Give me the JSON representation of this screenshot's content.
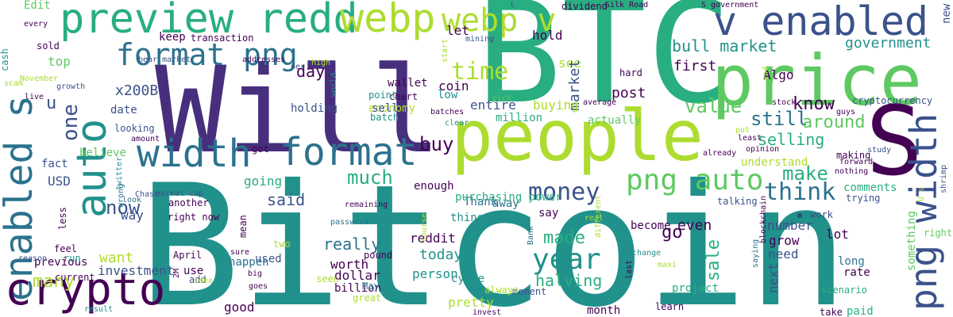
{
  "palette": {
    "dark_purple": "#440154",
    "purple": "#472f7d",
    "indigo": "#3b528b",
    "blue": "#2c728e",
    "teal": "#21918c",
    "green": "#28ae80",
    "light_green": "#5ec962",
    "lime": "#addc30",
    "yellow": "#fde725"
  },
  "words": [
    {
      "text": "Bitcoin"
    },
    {
      "text": "Will"
    },
    {
      "text": "BTC"
    },
    {
      "text": "people"
    },
    {
      "text": "price"
    },
    {
      "text": "S"
    },
    {
      "text": "preview redd"
    },
    {
      "text": "webp"
    },
    {
      "text": "webp v"
    },
    {
      "text": "v enabled"
    },
    {
      "text": "width"
    },
    {
      "text": "format"
    },
    {
      "text": "enabled s"
    },
    {
      "text": "auto"
    },
    {
      "text": "crypto"
    },
    {
      "text": "png width"
    },
    {
      "text": "format png"
    },
    {
      "text": "png auto"
    },
    {
      "text": "money"
    },
    {
      "text": "year"
    },
    {
      "text": "time"
    },
    {
      "text": "think"
    },
    {
      "text": "bull market"
    },
    {
      "text": "government"
    },
    {
      "text": "much"
    },
    {
      "text": "make"
    },
    {
      "text": "know"
    },
    {
      "text": "still"
    },
    {
      "text": "around"
    },
    {
      "text": "value"
    },
    {
      "text": "selling"
    },
    {
      "text": "buy"
    },
    {
      "text": "made"
    },
    {
      "text": "halving"
    },
    {
      "text": "sale"
    },
    {
      "text": "said"
    },
    {
      "text": "now"
    },
    {
      "text": "many"
    },
    {
      "text": "want"
    },
    {
      "text": "one"
    },
    {
      "text": "u"
    },
    {
      "text": "x200B"
    },
    {
      "text": "day"
    },
    {
      "text": "top"
    },
    {
      "text": "Edit"
    },
    {
      "text": "keep"
    },
    {
      "text": "transaction"
    },
    {
      "text": "wallet"
    },
    {
      "text": "chart"
    },
    {
      "text": "economy"
    },
    {
      "text": "point"
    },
    {
      "text": "sell"
    },
    {
      "text": "holding"
    },
    {
      "text": "batch"
    },
    {
      "text": "coin"
    },
    {
      "text": "low"
    },
    {
      "text": "hold"
    },
    {
      "text": "see"
    },
    {
      "text": "let"
    },
    {
      "text": "market"
    },
    {
      "text": "post"
    },
    {
      "text": "first"
    },
    {
      "text": "Algo"
    },
    {
      "text": "cryptocurrency"
    },
    {
      "text": "entire"
    },
    {
      "text": "buying"
    },
    {
      "text": "million"
    },
    {
      "text": "actually"
    },
    {
      "text": "going"
    },
    {
      "text": "USD"
    },
    {
      "text": "fact"
    },
    {
      "text": "believe"
    },
    {
      "text": "looking"
    },
    {
      "text": "amount"
    },
    {
      "text": "date"
    },
    {
      "text": "got"
    },
    {
      "text": "community"
    },
    {
      "text": "enough"
    },
    {
      "text": "Thank"
    },
    {
      "text": "away"
    },
    {
      "text": "thing"
    },
    {
      "text": "purchasing power"
    },
    {
      "text": "say"
    },
    {
      "text": "become"
    },
    {
      "text": "go"
    },
    {
      "text": "even"
    },
    {
      "text": "understand"
    },
    {
      "text": "comments"
    },
    {
      "text": "trying"
    },
    {
      "text": "talking"
    },
    {
      "text": "work"
    },
    {
      "text": "number"
    },
    {
      "text": "grow"
    },
    {
      "text": "need"
    },
    {
      "text": "next"
    },
    {
      "text": "lot"
    },
    {
      "text": "long"
    },
    {
      "text": "rate"
    },
    {
      "text": "something"
    },
    {
      "text": "right"
    },
    {
      "text": "paid"
    },
    {
      "text": "take"
    },
    {
      "text": "scenario"
    },
    {
      "text": "project"
    },
    {
      "text": "tweet"
    },
    {
      "text": "learn"
    },
    {
      "text": "month"
    },
    {
      "text": "good"
    },
    {
      "text": "pretty"
    },
    {
      "text": "moment"
    },
    {
      "text": "cycle"
    },
    {
      "text": "always"
    },
    {
      "text": "billion"
    },
    {
      "text": "great"
    },
    {
      "text": "person"
    },
    {
      "text": "dollar"
    },
    {
      "text": "worth"
    },
    {
      "text": "really"
    },
    {
      "text": "today"
    },
    {
      "text": "reddit"
    },
    {
      "text": "May"
    },
    {
      "text": "pound"
    },
    {
      "text": "used"
    },
    {
      "text": "use"
    },
    {
      "text": "add"
    },
    {
      "text": "April"
    },
    {
      "text": "investment"
    },
    {
      "text": "current"
    },
    {
      "text": "previous"
    },
    {
      "text": "feel"
    },
    {
      "text": "run"
    },
    {
      "text": "less"
    },
    {
      "text": "way"
    },
    {
      "text": "another"
    },
    {
      "text": "right now"
    },
    {
      "text": "mean"
    },
    {
      "text": "sure"
    },
    {
      "text": "happen"
    },
    {
      "text": "two"
    },
    {
      "text": "password"
    },
    {
      "text": "remaining"
    },
    {
      "text": "Chase"
    },
    {
      "text": "market cap"
    },
    {
      "text": "twitter"
    },
    {
      "text": "look"
    },
    {
      "text": "wrong"
    },
    {
      "text": "every"
    },
    {
      "text": "sold"
    },
    {
      "text": "cash"
    },
    {
      "text": "November"
    },
    {
      "text": "growth"
    },
    {
      "text": "live"
    },
    {
      "text": "scam"
    },
    {
      "text": "addresses"
    },
    {
      "text": "high"
    },
    {
      "text": "per"
    },
    {
      "text": "bear market"
    },
    {
      "text": "mining"
    },
    {
      "text": "dividend"
    },
    {
      "text": "t"
    },
    {
      "text": "Silk Road"
    },
    {
      "text": "S government"
    },
    {
      "text": "new"
    },
    {
      "text": "hard"
    },
    {
      "text": "end"
    },
    {
      "text": "average"
    },
    {
      "text": "stock"
    },
    {
      "text": "guys"
    },
    {
      "text": "clear"
    },
    {
      "text": "batches"
    },
    {
      "text": "pick"
    },
    {
      "text": "start"
    },
    {
      "text": "world"
    },
    {
      "text": "least"
    },
    {
      "text": "put"
    },
    {
      "text": "opinion"
    },
    {
      "text": "already"
    },
    {
      "text": "study"
    },
    {
      "text": "making"
    },
    {
      "text": "forward"
    },
    {
      "text": "nothing"
    },
    {
      "text": "shrimp"
    },
    {
      "text": "U s"
    },
    {
      "text": "m"
    },
    {
      "text": "blockchain"
    },
    {
      "text": "exchange"
    },
    {
      "text": "maxi"
    },
    {
      "text": "last"
    },
    {
      "text": "real"
    },
    {
      "text": "different"
    },
    {
      "text": "Bank"
    },
    {
      "text": "course"
    },
    {
      "text": "saying"
    },
    {
      "text": "reason"
    },
    {
      "text": "2M"
    },
    {
      "text": "idea"
    },
    {
      "text": "seen"
    },
    {
      "text": "big"
    },
    {
      "text": "goes"
    },
    {
      "text": "result"
    },
    {
      "text": "invest"
    },
    {
      "text": "earn"
    }
  ]
}
